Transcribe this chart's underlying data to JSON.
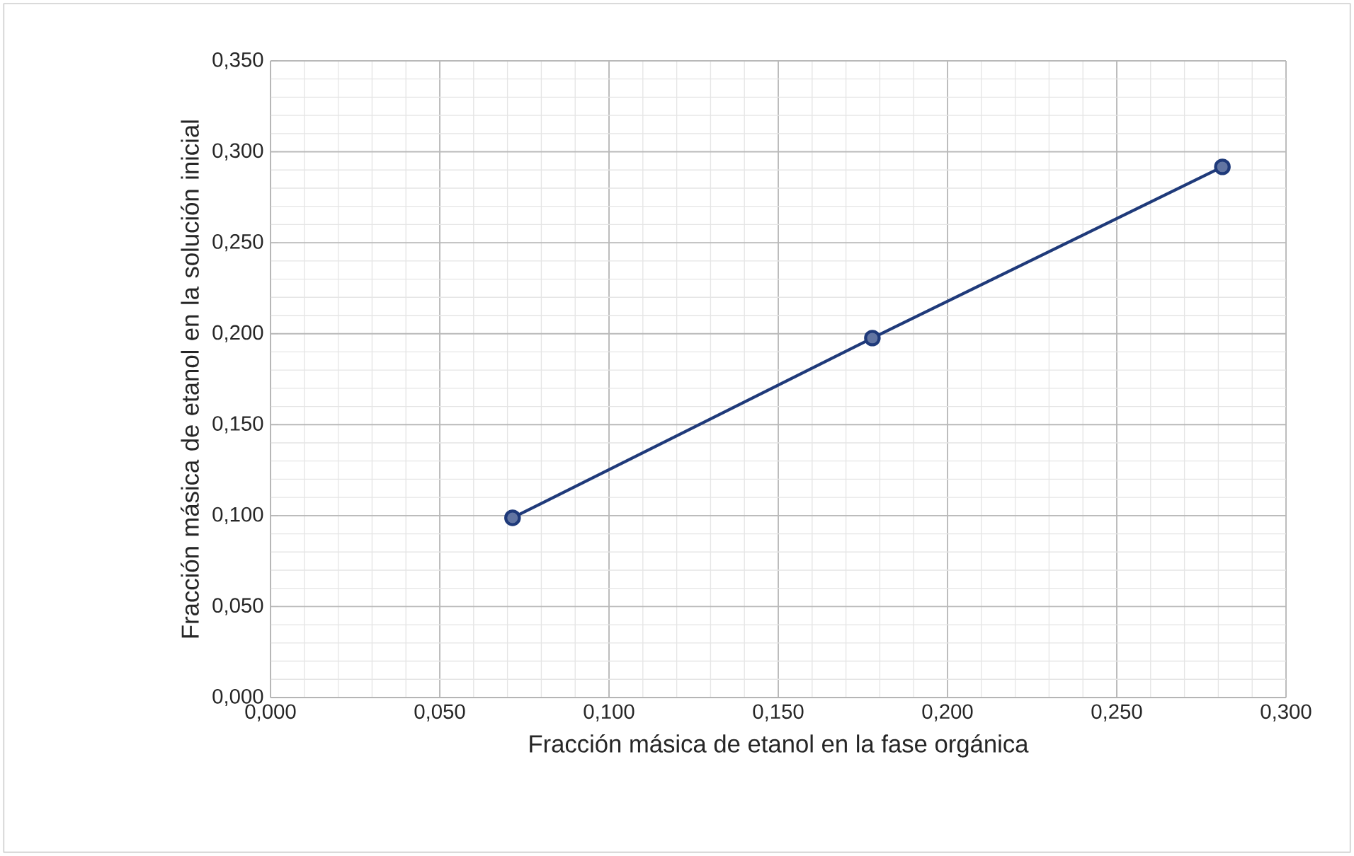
{
  "chart_data": {
    "type": "line",
    "xlabel": "Fracción másica de etanol en la fase orgánica",
    "ylabel": "Fracción másica de etanol en la solución inicial",
    "x": [
      0.0715,
      0.1778,
      0.2812
    ],
    "series": [
      {
        "color": "#1f3a7a",
        "values": [
          0.0988,
          0.1976,
          0.2917
        ]
      }
    ],
    "marker": "circle",
    "grid": true,
    "xlim": [
      0,
      0.3
    ],
    "ylim": [
      0,
      0.35
    ],
    "xticks": [
      {
        "value": 0,
        "label": "0,000"
      },
      {
        "value": 0.05,
        "label": "0,050"
      },
      {
        "value": 0.1,
        "label": "0,100"
      },
      {
        "value": 0.15,
        "label": "0,150"
      },
      {
        "value": 0.2,
        "label": "0,200"
      },
      {
        "value": 0.25,
        "label": "0,250"
      },
      {
        "value": 0.3,
        "label": "0,300"
      }
    ],
    "yticks": [
      {
        "value": 0,
        "label": "0,000"
      },
      {
        "value": 0.05,
        "label": "0,050"
      },
      {
        "value": 0.1,
        "label": "0,100"
      },
      {
        "value": 0.15,
        "label": "0,150"
      },
      {
        "value": 0.2,
        "label": "0,200"
      },
      {
        "value": 0.25,
        "label": "0,250"
      },
      {
        "value": 0.3,
        "label": "0,300"
      },
      {
        "value": 0.35,
        "label": "0,350"
      }
    ]
  }
}
